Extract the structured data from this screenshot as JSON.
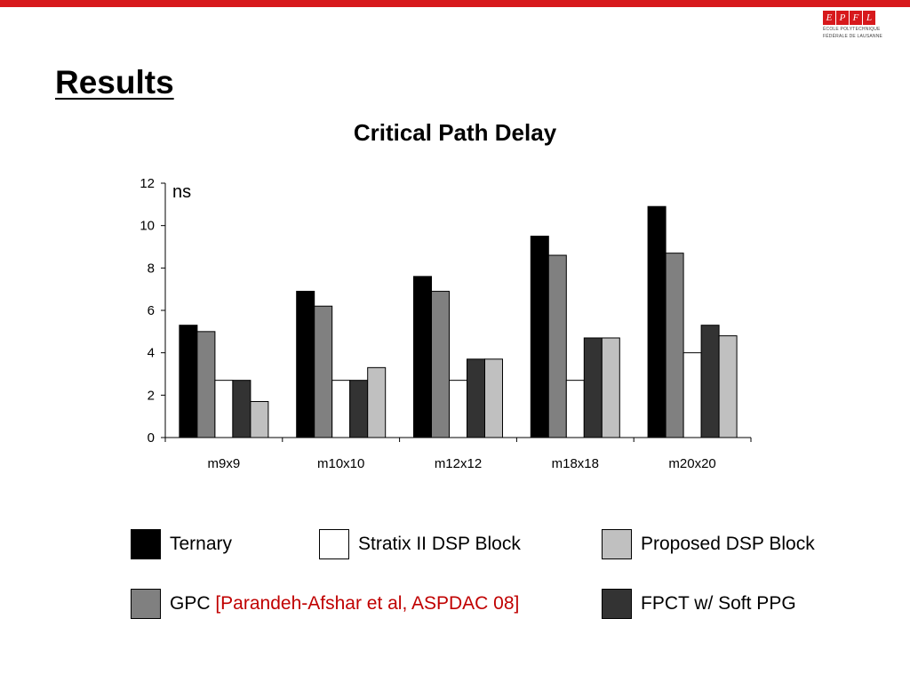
{
  "slide": {
    "title": "Results",
    "logo": {
      "text": "EPFL",
      "line1": "ÉCOLE POLYTECHNIQUE",
      "line2": "FÉDÉRALE DE LAUSANNE"
    }
  },
  "colors": {
    "brand": "#d7191c",
    "ternary": "#000000",
    "gpc": "#808080",
    "stratix": "#ffffff",
    "fpct": "#333333",
    "proposed": "#c0c0c0",
    "reference": "#c00000"
  },
  "legend": {
    "ternary": "Ternary",
    "stratix": "Stratix II DSP Block",
    "proposed": "Proposed DSP Block",
    "gpc": "GPC ",
    "gpc_ref": "[Parandeh-Afshar et al, ASPDAC 08]",
    "fpct": "FPCT w/ Soft PPG"
  },
  "chart_data": {
    "type": "bar",
    "title": "Critical Path Delay",
    "ylabel": "ns",
    "xlabel": "",
    "categories": [
      "m9x9",
      "m10x10",
      "m12x12",
      "m18x18",
      "m20x20"
    ],
    "ylim": [
      0,
      12
    ],
    "yticks": [
      "0",
      "2",
      "4",
      "6",
      "8",
      "10",
      "12"
    ],
    "grid": false,
    "series": [
      {
        "name": "Ternary",
        "values": [
          5.3,
          6.9,
          7.6,
          9.5,
          10.9
        ]
      },
      {
        "name": "GPC [Parandeh-Afshar et al, ASPDAC 08]",
        "values": [
          5.0,
          6.2,
          6.9,
          8.6,
          8.7
        ]
      },
      {
        "name": "Stratix II DSP Block",
        "values": [
          2.7,
          2.7,
          2.7,
          2.7,
          4.0
        ]
      },
      {
        "name": "FPCT w/ Soft PPG",
        "values": [
          2.7,
          2.7,
          3.7,
          4.7,
          5.3
        ]
      },
      {
        "name": "Proposed DSP Block",
        "values": [
          1.7,
          3.3,
          3.7,
          4.7,
          4.8
        ]
      }
    ]
  }
}
